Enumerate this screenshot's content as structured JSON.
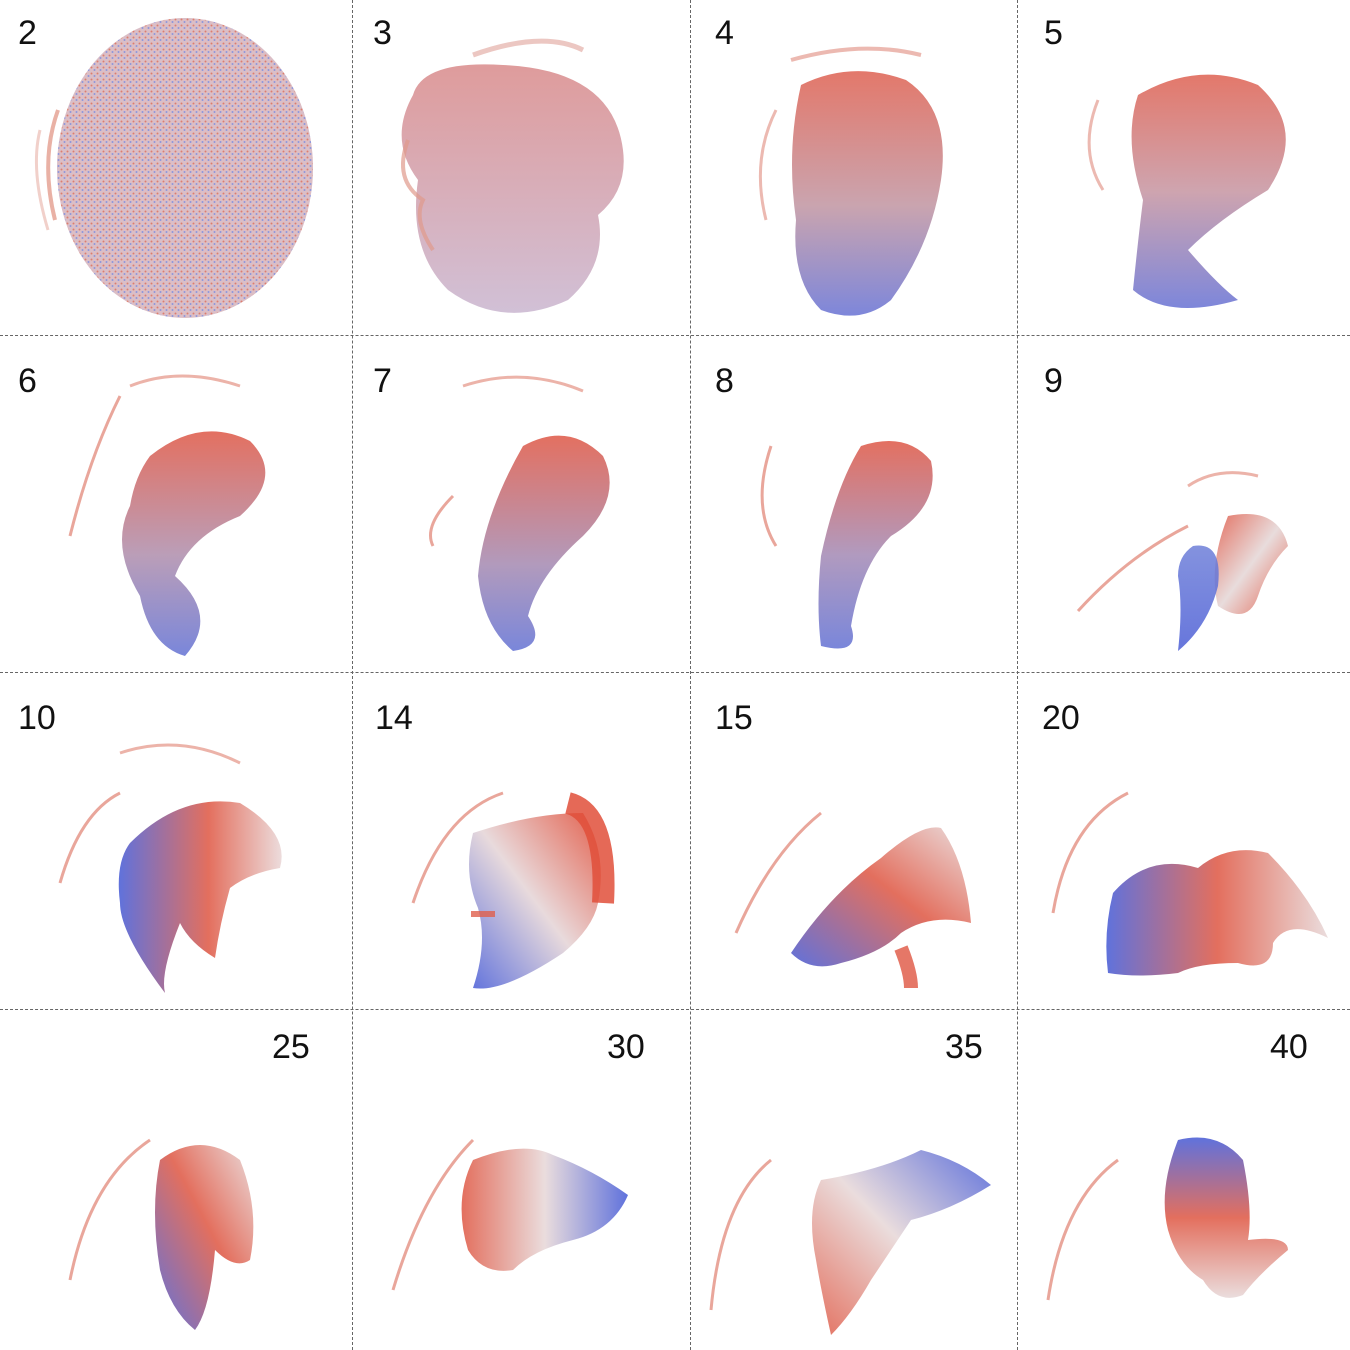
{
  "panels": [
    {
      "label": "2"
    },
    {
      "label": "3"
    },
    {
      "label": "4"
    },
    {
      "label": "5"
    },
    {
      "label": "6"
    },
    {
      "label": "7"
    },
    {
      "label": "8"
    },
    {
      "label": "9"
    },
    {
      "label": "10"
    },
    {
      "label": "14"
    },
    {
      "label": "15"
    },
    {
      "label": "20"
    },
    {
      "label": "25"
    },
    {
      "label": "30"
    },
    {
      "label": "35"
    },
    {
      "label": "40"
    }
  ],
  "colors": {
    "red": "#e0513a",
    "blue": "#4f63d8",
    "light": "#e8dcdc",
    "divider": "#666666"
  }
}
